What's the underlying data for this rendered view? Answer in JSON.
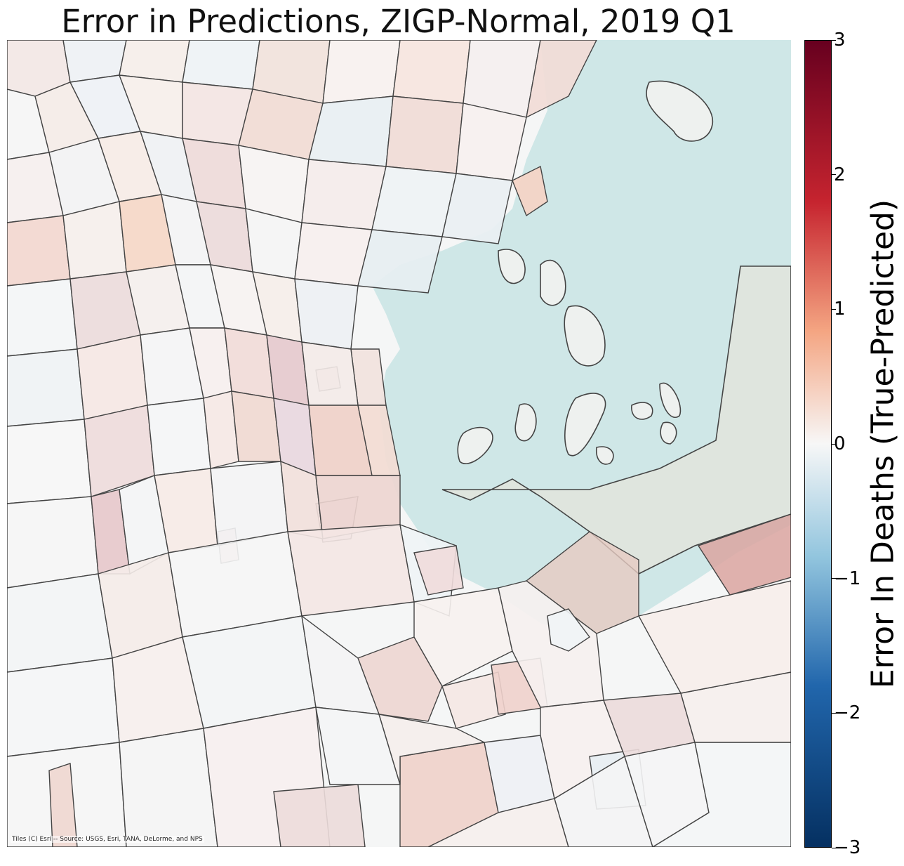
{
  "title": "Error in Predictions, ZIGP-Normal, 2019 Q1",
  "attribution": "Tiles (C) Esri -- Source: USGS, Esri, TANA, DeLorme, and NPS",
  "colorbar": {
    "label": "Error In Deaths (True-Predicted)",
    "min": -3,
    "max": 3,
    "ticks": [
      {
        "value": 3,
        "label": "3"
      },
      {
        "value": 2,
        "label": "2"
      },
      {
        "value": 1,
        "label": "1"
      },
      {
        "value": 0,
        "label": "0"
      },
      {
        "value": -1,
        "label": "−1"
      },
      {
        "value": -2,
        "label": "−2"
      },
      {
        "value": -3,
        "label": "−3"
      }
    ],
    "colors": {
      "top": "#67001f",
      "high": "#c6242f",
      "mid_high": "#f4a582",
      "center": "#f7f7f7",
      "mid_low": "#92c5de",
      "low": "#2166ac",
      "bottom": "#053061"
    }
  },
  "map": {
    "water_color": "#cfe7e7",
    "land_color": "#f5f6f6",
    "boundary_color": "#444444"
  }
}
